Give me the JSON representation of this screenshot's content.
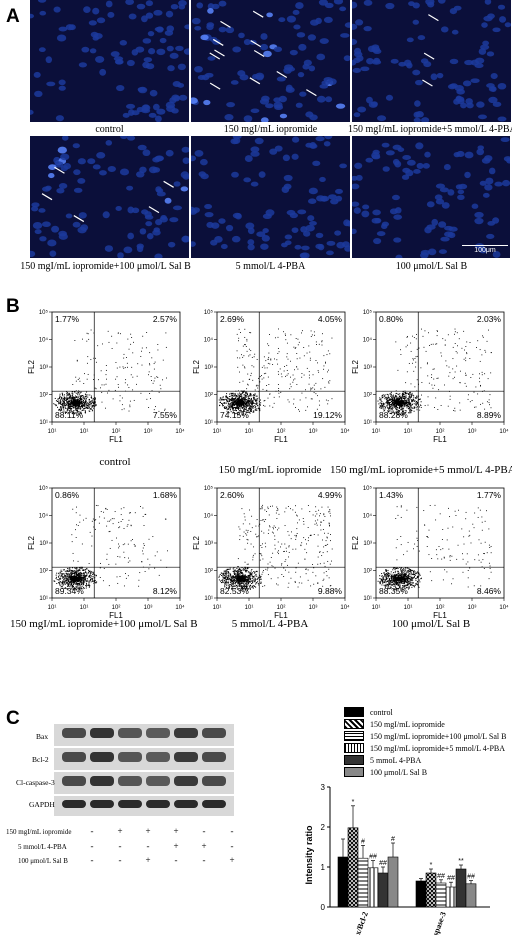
{
  "panel_labels": {
    "a": "A",
    "b": "B",
    "c": "C"
  },
  "panel_a": {
    "captions": [
      "control",
      "150 mgI/mL iopromide",
      "150 mgI/mL iopromide+5 mmol/L 4-PBA",
      "150 mgI/mL iopromide+100 μmol/L Sal B",
      "5 mmol/L 4-PBA",
      "100 μmol/L Sal B"
    ],
    "scale_bar": "100μm"
  },
  "panel_b": {
    "axis_x": "FL1",
    "axis_y": "FL2",
    "plots": [
      {
        "caption": "control",
        "ul": "1.77%",
        "ur": "2.57%",
        "ll": "88.11%",
        "lr": "7.55%"
      },
      {
        "caption": "150 mgI/mL iopromide",
        "ul": "2.69%",
        "ur": "4.05%",
        "ll": "74.15%",
        "lr": "19.12%"
      },
      {
        "caption": "150 mgI/mL iopromide+5 mmol/L 4-PBA",
        "ul": "0.80%",
        "ur": "2.03%",
        "ll": "88.28%",
        "lr": "8.89%"
      },
      {
        "caption": "150 mgI/mL iopromide+100 μmol/L Sal B",
        "ul": "0.86%",
        "ur": "1.68%",
        "ll": "89.34%",
        "lr": "8.12%"
      },
      {
        "caption": "5 mmol/L 4-PBA",
        "ul": "2.60%",
        "ur": "4.99%",
        "ll": "82.53%",
        "lr": "9.88%"
      },
      {
        "caption": "100 μmol/L Sal B",
        "ul": "1.43%",
        "ur": "1.77%",
        "ll": "88.35%",
        "lr": "8.46%"
      }
    ]
  },
  "panel_c": {
    "blot_labels": [
      "Bax",
      "Bcl-2",
      "Cl-caspase-3",
      "GAPDH"
    ],
    "treatments": [
      {
        "label": "150 mgI/mL iopromide",
        "signs": [
          "-",
          "+",
          "+",
          "+",
          "-",
          "-"
        ]
      },
      {
        "label": "5 mmol/L 4-PBA",
        "signs": [
          "-",
          "-",
          "-",
          "+",
          "+",
          "-"
        ]
      },
      {
        "label": "100 μmol/L Sal B",
        "signs": [
          "-",
          "-",
          "+",
          "-",
          "-",
          "+"
        ]
      }
    ],
    "legend": [
      "control",
      "150 mgI/mL iopromide",
      "150 mgI/mL iopromide+100 μmol/L Sal B",
      "150 mgI/mL iopromide+5 mmol/L 4-PBA",
      "5 mmoL 4-PBA",
      "100 μmol/L Sal B"
    ]
  },
  "chart_data": {
    "type": "bar",
    "categories": [
      "Bax/Bcl-2",
      "Cl-caspase-3"
    ],
    "ylabel": "Intensity ratio",
    "ylim": [
      0,
      3
    ],
    "yticks": [
      0,
      1,
      2,
      3
    ],
    "series": [
      {
        "name": "control",
        "values": [
          1.25,
          0.65
        ],
        "errors": [
          0.45,
          0.06
        ],
        "marks": [
          "",
          ""
        ]
      },
      {
        "name": "150 mgI/mL iopromide",
        "values": [
          1.98,
          0.85
        ],
        "errors": [
          0.55,
          0.1
        ],
        "marks": [
          "*",
          "*"
        ]
      },
      {
        "name": "150 mgI/mL iopromide+100 μmol/L Sal B",
        "values": [
          1.22,
          0.6
        ],
        "errors": [
          0.32,
          0.08
        ],
        "marks": [
          "#",
          "##"
        ]
      },
      {
        "name": "150 mgI/mL iopromide+5 mmol/L 4-PBA",
        "values": [
          0.98,
          0.5
        ],
        "errors": [
          0.18,
          0.12
        ],
        "marks": [
          "##",
          "##"
        ]
      },
      {
        "name": "5 mmoL 4-PBA",
        "values": [
          0.85,
          0.95
        ],
        "errors": [
          0.15,
          0.1
        ],
        "marks": [
          "##",
          "**"
        ]
      },
      {
        "name": "100 μmol/L Sal B",
        "values": [
          1.25,
          0.58
        ],
        "errors": [
          0.35,
          0.08
        ],
        "marks": [
          "#",
          "##"
        ]
      }
    ]
  }
}
